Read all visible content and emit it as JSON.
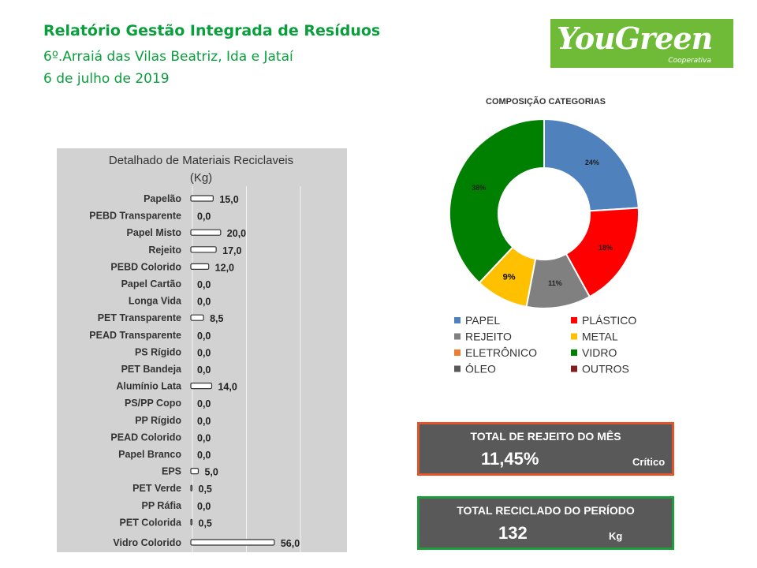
{
  "header": {
    "title": "Relatório Gestão Integrada de Resíduos",
    "subtitle": "6º.Arraiá das Vilas Beatriz, Ida e Jataí",
    "date": "6 de julho de 2019"
  },
  "logo": {
    "brand": "YouGreen",
    "tagline": "Cooperativa",
    "color": "#6fbb38"
  },
  "chart_data": [
    {
      "type": "bar",
      "orientation": "horizontal",
      "title_lines": [
        "Detalhado de Materiais Reciclaveis",
        "(Kg)"
      ],
      "categories": [
        "Papelão",
        "PEBD Transparente",
        "Papel Misto",
        "Rejeito",
        "PEBD Colorido",
        "Papel Cartão",
        "Longa Vida",
        "PET Transparente",
        "PEAD Transparente",
        "PS Rígido",
        "PET Bandeja",
        "Alumínio Lata",
        "PS/PP Copo",
        "PP Rígido",
        "PEAD Colorido",
        "Papel Branco",
        "EPS",
        "PET Verde",
        "PP Ráfia",
        "PET Colorida",
        "Vidro Colorido"
      ],
      "values": [
        15.0,
        0.0,
        20.0,
        17.0,
        12.0,
        0.0,
        0.0,
        8.5,
        0.0,
        0.0,
        0.0,
        14.0,
        0.0,
        0.0,
        0.0,
        0.0,
        5.0,
        0.5,
        0.0,
        0.5,
        56.0
      ],
      "value_labels": [
        "15,0",
        "0,0",
        "20,0",
        "17,0",
        "12,0",
        "0,0",
        "0,0",
        "8,5",
        "0,0",
        "0,0",
        "0,0",
        "14,0",
        "0,0",
        "0,0",
        "0,0",
        "0,0",
        "5,0",
        "0,5",
        "0,0",
        "0,5",
        "56,0"
      ],
      "xlim": [
        0,
        100
      ],
      "grid": true,
      "background": "#d2d2d2"
    },
    {
      "type": "pie",
      "donut": true,
      "title": "COMPOSIÇÃO CATEGORIAS",
      "slices": [
        {
          "name": "PAPEL",
          "value": 24,
          "label": "24%",
          "color": "#4f81bd"
        },
        {
          "name": "PLÁSTICO",
          "value": 18,
          "label": "18%",
          "color": "#ff0000"
        },
        {
          "name": "REJEITO",
          "value": 11,
          "label": "11%",
          "color": "#808080"
        },
        {
          "name": "METAL",
          "value": 9,
          "label": "9%",
          "color": "#ffc000"
        },
        {
          "name": "VIDRO",
          "value": 38,
          "label": "38%",
          "color": "#008000"
        }
      ],
      "legend": [
        {
          "name": "PAPEL",
          "color": "#4f81bd"
        },
        {
          "name": "PLÁSTICO",
          "color": "#ff0000"
        },
        {
          "name": "REJEITO",
          "color": "#808080"
        },
        {
          "name": "METAL",
          "color": "#ffc000"
        },
        {
          "name": "ELETRÔNICO",
          "color": "#ed7d31"
        },
        {
          "name": "VIDRO",
          "color": "#008000"
        },
        {
          "name": "ÓLEO",
          "color": "#595959"
        },
        {
          "name": "OUTROS",
          "color": "#7f1f1f"
        }
      ],
      "legend_position": "bottom"
    }
  ],
  "kpis": {
    "rejeito": {
      "label": "TOTAL DE REJEITO DO MÊS",
      "value": "11,45%",
      "status": "Crítico",
      "border_color": "#e2542a"
    },
    "reciclado": {
      "label": "TOTAL RECICLADO DO PERÍODO",
      "value": "132",
      "unit": "Kg",
      "border_color": "#1e9e3a"
    }
  }
}
